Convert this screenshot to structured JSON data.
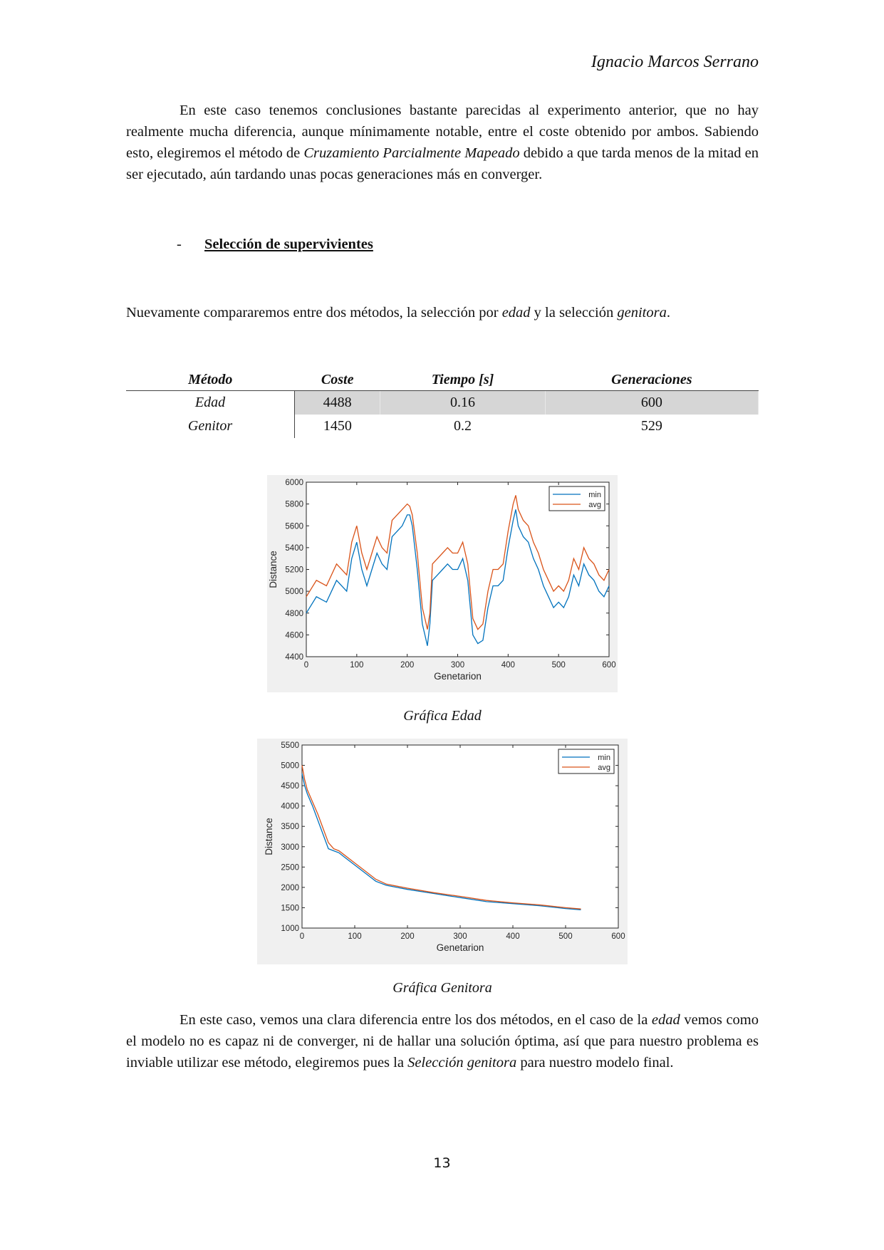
{
  "header": {
    "author": "Ignacio Marcos Serrano"
  },
  "intro": {
    "p1_a": "En este caso tenemos conclusiones bastante parecidas al experimento anterior, que no hay realmente mucha diferencia, aunque mínimamente notable, entre el coste obtenido por ambos. Sabiendo esto, elegiremos el método de ",
    "p1_em": "Cruzamiento Parcialmente Mapeado",
    "p1_b": " debido a que tarda menos de la mitad en ser ejecutado, aún tardando unas pocas generaciones más en converger."
  },
  "section": {
    "bullet": "-",
    "title": "Selección de supervivientes"
  },
  "comparison": {
    "a": "Nuevamente compararemos entre dos métodos, la selección por ",
    "em1": "edad",
    "b": " y la selección ",
    "em2": "genitora",
    "c": "."
  },
  "table": {
    "headers": [
      "Método",
      "Coste",
      "Tiempo [s]",
      "Generaciones"
    ],
    "rows": [
      [
        "Edad",
        "4488",
        "0.16",
        "600"
      ],
      [
        "Genitor",
        "1450",
        "0.2",
        "529"
      ]
    ]
  },
  "chart_data": [
    {
      "type": "line",
      "title": "",
      "xlabel": "Genetarion",
      "ylabel": "Distance",
      "xlim": [
        0,
        600
      ],
      "ylim": [
        4400,
        6000
      ],
      "xticks": [
        0,
        100,
        200,
        300,
        400,
        500,
        600
      ],
      "yticks": [
        4400,
        4600,
        4800,
        5000,
        5200,
        5400,
        5600,
        5800,
        6000
      ],
      "legend_position": "top-right",
      "grid": false,
      "series": [
        {
          "name": "min",
          "color": "#0072BD",
          "x": [
            0,
            20,
            40,
            60,
            80,
            90,
            100,
            110,
            120,
            130,
            140,
            150,
            160,
            170,
            180,
            190,
            200,
            205,
            210,
            220,
            230,
            235,
            240,
            245,
            250,
            260,
            270,
            280,
            290,
            300,
            310,
            320,
            330,
            340,
            350,
            360,
            370,
            380,
            390,
            400,
            410,
            415,
            420,
            430,
            440,
            450,
            460,
            470,
            480,
            490,
            500,
            510,
            520,
            530,
            540,
            550,
            560,
            570,
            580,
            590,
            600
          ],
          "y": [
            4800,
            4950,
            4900,
            5100,
            5000,
            5300,
            5450,
            5200,
            5050,
            5200,
            5350,
            5250,
            5200,
            5500,
            5550,
            5600,
            5700,
            5700,
            5600,
            5200,
            4700,
            4600,
            4500,
            4700,
            5100,
            5150,
            5200,
            5250,
            5200,
            5200,
            5300,
            5100,
            4600,
            4520,
            4550,
            4850,
            5050,
            5050,
            5100,
            5400,
            5650,
            5750,
            5600,
            5500,
            5450,
            5300,
            5200,
            5050,
            4950,
            4850,
            4900,
            4850,
            4950,
            5150,
            5050,
            5250,
            5150,
            5100,
            5000,
            4950,
            5050
          ]
        },
        {
          "name": "avg",
          "color": "#D95319",
          "x": [
            0,
            20,
            40,
            60,
            80,
            90,
            100,
            110,
            120,
            130,
            140,
            150,
            160,
            170,
            180,
            190,
            200,
            205,
            210,
            220,
            230,
            235,
            240,
            245,
            250,
            260,
            270,
            280,
            290,
            300,
            310,
            320,
            330,
            340,
            350,
            360,
            370,
            380,
            390,
            400,
            410,
            415,
            420,
            430,
            440,
            450,
            460,
            470,
            480,
            490,
            500,
            510,
            520,
            530,
            540,
            550,
            560,
            570,
            580,
            590,
            600
          ],
          "y": [
            4950,
            5100,
            5050,
            5250,
            5150,
            5450,
            5600,
            5350,
            5200,
            5350,
            5500,
            5400,
            5350,
            5650,
            5700,
            5750,
            5800,
            5780,
            5700,
            5350,
            4850,
            4750,
            4650,
            4800,
            5250,
            5300,
            5350,
            5400,
            5350,
            5350,
            5450,
            5250,
            4750,
            4650,
            4700,
            5000,
            5200,
            5200,
            5250,
            5550,
            5800,
            5880,
            5750,
            5650,
            5600,
            5450,
            5350,
            5200,
            5100,
            5000,
            5050,
            5000,
            5100,
            5300,
            5200,
            5400,
            5300,
            5250,
            5150,
            5100,
            5200
          ]
        }
      ]
    },
    {
      "type": "line",
      "title": "",
      "xlabel": "Genetarion",
      "ylabel": "Distance",
      "xlim": [
        0,
        600
      ],
      "ylim": [
        1000,
        5500
      ],
      "xticks": [
        0,
        100,
        200,
        300,
        400,
        500,
        600
      ],
      "yticks": [
        1000,
        1500,
        2000,
        2500,
        3000,
        3500,
        4000,
        4500,
        5000,
        5500
      ],
      "legend_position": "top-right",
      "grid": false,
      "series": [
        {
          "name": "min",
          "color": "#0072BD",
          "x": [
            0,
            5,
            10,
            20,
            30,
            40,
            50,
            60,
            70,
            80,
            100,
            120,
            140,
            160,
            180,
            200,
            250,
            300,
            350,
            400,
            450,
            500,
            529
          ],
          "y": [
            4800,
            4500,
            4300,
            4000,
            3650,
            3300,
            2950,
            2900,
            2850,
            2750,
            2550,
            2350,
            2150,
            2050,
            2000,
            1950,
            1850,
            1750,
            1650,
            1600,
            1550,
            1480,
            1450
          ]
        },
        {
          "name": "avg",
          "color": "#D95319",
          "x": [
            0,
            5,
            10,
            20,
            30,
            40,
            50,
            60,
            70,
            80,
            100,
            120,
            140,
            160,
            180,
            200,
            250,
            300,
            350,
            400,
            450,
            500,
            529
          ],
          "y": [
            5000,
            4650,
            4400,
            4100,
            3800,
            3450,
            3100,
            2950,
            2900,
            2800,
            2600,
            2400,
            2200,
            2080,
            2030,
            1980,
            1870,
            1780,
            1680,
            1620,
            1570,
            1500,
            1470
          ]
        }
      ]
    }
  ],
  "captions": {
    "edad": "Gráfica Edad",
    "genitora": "Gráfica Genitora"
  },
  "conclusion": {
    "a": "En este caso, vemos una clara diferencia entre los dos métodos, en el caso de la ",
    "em1": "edad",
    "b": " vemos como el modelo no es capaz ni de converger, ni de hallar una solución óptima, así que para nuestro problema es inviable utilizar ese método, elegiremos pues la ",
    "em2": "Selección genitora",
    "c": " para nuestro modelo final."
  },
  "footer": {
    "page_number": "13"
  }
}
